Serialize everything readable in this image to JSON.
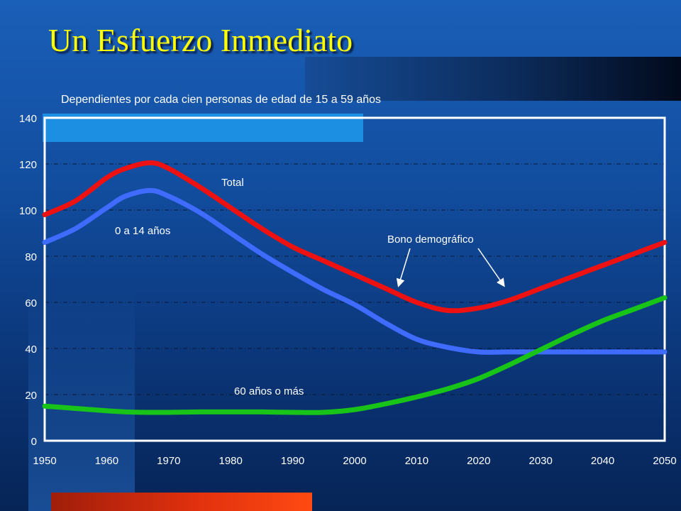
{
  "title": "Un Esfuerzo Inmediato",
  "chart_data": {
    "type": "line",
    "subtitle": "Dependientes por cada cien personas de edad de 15 a 59 años",
    "x": [
      1950,
      1955,
      1960,
      1963,
      1967,
      1970,
      1975,
      1980,
      1985,
      1990,
      1995,
      2000,
      2005,
      2010,
      2015,
      2020,
      2025,
      2030,
      2035,
      2040,
      2045,
      2050
    ],
    "series": [
      {
        "name": "Total",
        "color": "#ee1111",
        "values": [
          98,
          104,
          114,
          118,
          120.5,
          118,
          110,
          101,
          92,
          84,
          78,
          72,
          66,
          60,
          56.5,
          57.5,
          61,
          66,
          71,
          76,
          81,
          86
        ]
      },
      {
        "name": "0 a 14 años",
        "color": "#3f6bff",
        "values": [
          86,
          92,
          101,
          106,
          108.5,
          106,
          99,
          90,
          81,
          73,
          65.5,
          59,
          51,
          44,
          40.5,
          38.5,
          38.5,
          38.5,
          38.5,
          38.5,
          38.5,
          38.5
        ]
      },
      {
        "name": "60 años o más",
        "color": "#18c418",
        "values": [
          15,
          14,
          13,
          12.5,
          12.3,
          12.3,
          12.5,
          12.5,
          12.5,
          12.3,
          12.3,
          13.5,
          16,
          19,
          22.5,
          27,
          33,
          39.5,
          46,
          52,
          57,
          62
        ]
      }
    ],
    "ylim": [
      0,
      140
    ],
    "yticks": [
      0,
      20,
      40,
      60,
      80,
      100,
      120,
      140
    ],
    "xlim": [
      1950,
      2050
    ],
    "xticks": [
      1950,
      1960,
      1970,
      1980,
      1990,
      2000,
      2010,
      2020,
      2030,
      2040,
      2050
    ],
    "grid": true,
    "annotations": [
      {
        "text": "Total"
      },
      {
        "text": "0 a 14 años"
      },
      {
        "text": "60 años o más"
      },
      {
        "text": "Bono demográfico",
        "points_to": [
          2005,
          2022
        ]
      }
    ]
  }
}
